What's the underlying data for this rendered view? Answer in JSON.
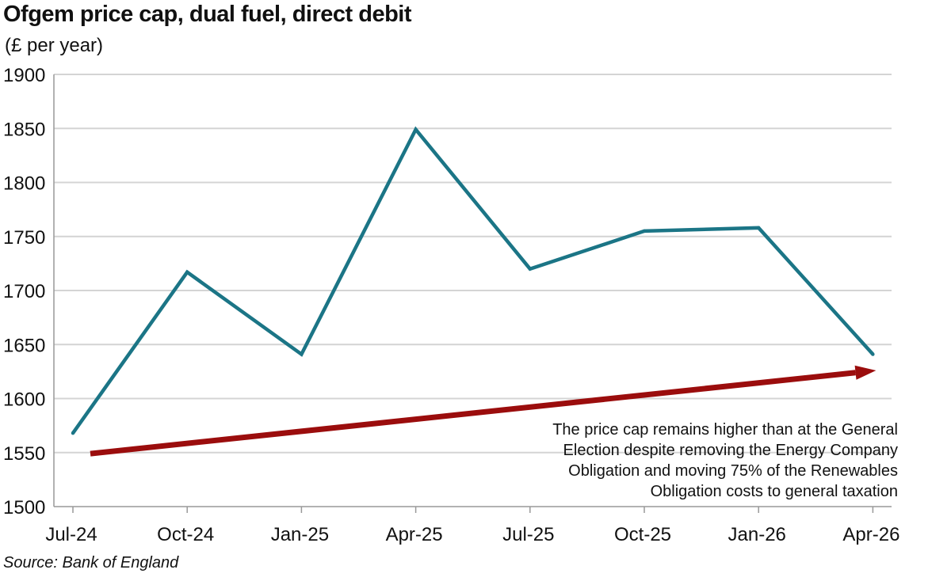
{
  "title": "Ofgem price cap, dual fuel, direct debit",
  "unit_label": "(£ per year)",
  "source": "Source: Bank of England",
  "colors": {
    "line": "#1b7586",
    "arrow": "#9b0d0d",
    "grid": "#d4d4d4",
    "axis": "#999999"
  },
  "chart_data": {
    "type": "line",
    "title": "Ofgem price cap, dual fuel, direct debit",
    "ylabel": "(£ per year)",
    "xlabel": "",
    "x": [
      "Jul-24",
      "Oct-24",
      "Jan-25",
      "Apr-25",
      "Jul-25",
      "Oct-25",
      "Jan-26",
      "Apr-26"
    ],
    "series": [
      {
        "values": [
          1568,
          1717,
          1641,
          1849,
          1720,
          1755,
          1758,
          1641
        ]
      }
    ],
    "ylim": [
      1500,
      1900
    ],
    "yticks": [
      1500,
      1550,
      1600,
      1650,
      1700,
      1750,
      1800,
      1850,
      1900
    ],
    "grid": true,
    "trend_arrow": {
      "from": {
        "x": "Jul-24",
        "y": 1549
      },
      "to": {
        "x": "Apr-26",
        "y": 1626
      }
    },
    "annotation": [
      "The price cap remains higher than at the General",
      "Election despite removing the Energy Company",
      "Obligation and moving 75% of the Renewables",
      "Obligation costs to general taxation"
    ]
  }
}
